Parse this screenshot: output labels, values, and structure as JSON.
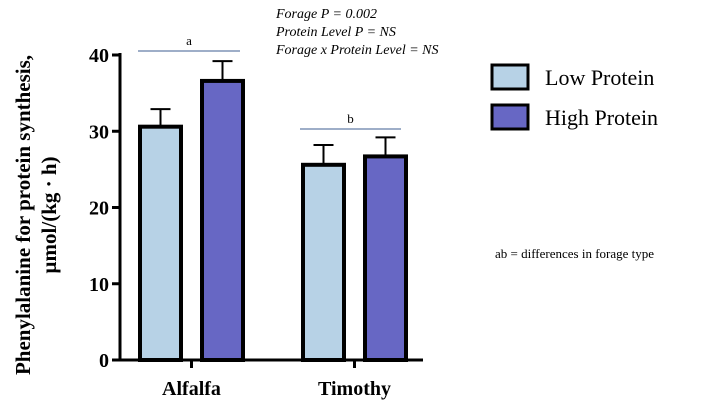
{
  "chart_data": {
    "type": "bar",
    "categories": [
      "Alfalfa",
      "Timothy"
    ],
    "series": [
      {
        "name": "Low Protein",
        "color": "#b7d2e6",
        "values": [
          30.6,
          25.6
        ],
        "error": [
          2.3,
          2.6
        ]
      },
      {
        "name": "High Protein",
        "color": "#6767c4",
        "values": [
          36.6,
          26.7
        ],
        "error": [
          2.6,
          2.5
        ]
      }
    ],
    "ylabel_line1": "Phenylalanine for protein synthesis,",
    "ylabel_line2": "µmol/(kg · h)",
    "ylim": [
      0,
      40
    ],
    "yticks": [
      "0",
      "10",
      "20",
      "30",
      "40"
    ],
    "legend_position": "right",
    "significance_letters": [
      "a",
      "b"
    ],
    "annotations": [
      "Forage P = 0.002",
      "Protein Level P = NS",
      "Forage x Protein Level = NS"
    ],
    "footnote": "ab = differences in forage type",
    "grid": false
  }
}
